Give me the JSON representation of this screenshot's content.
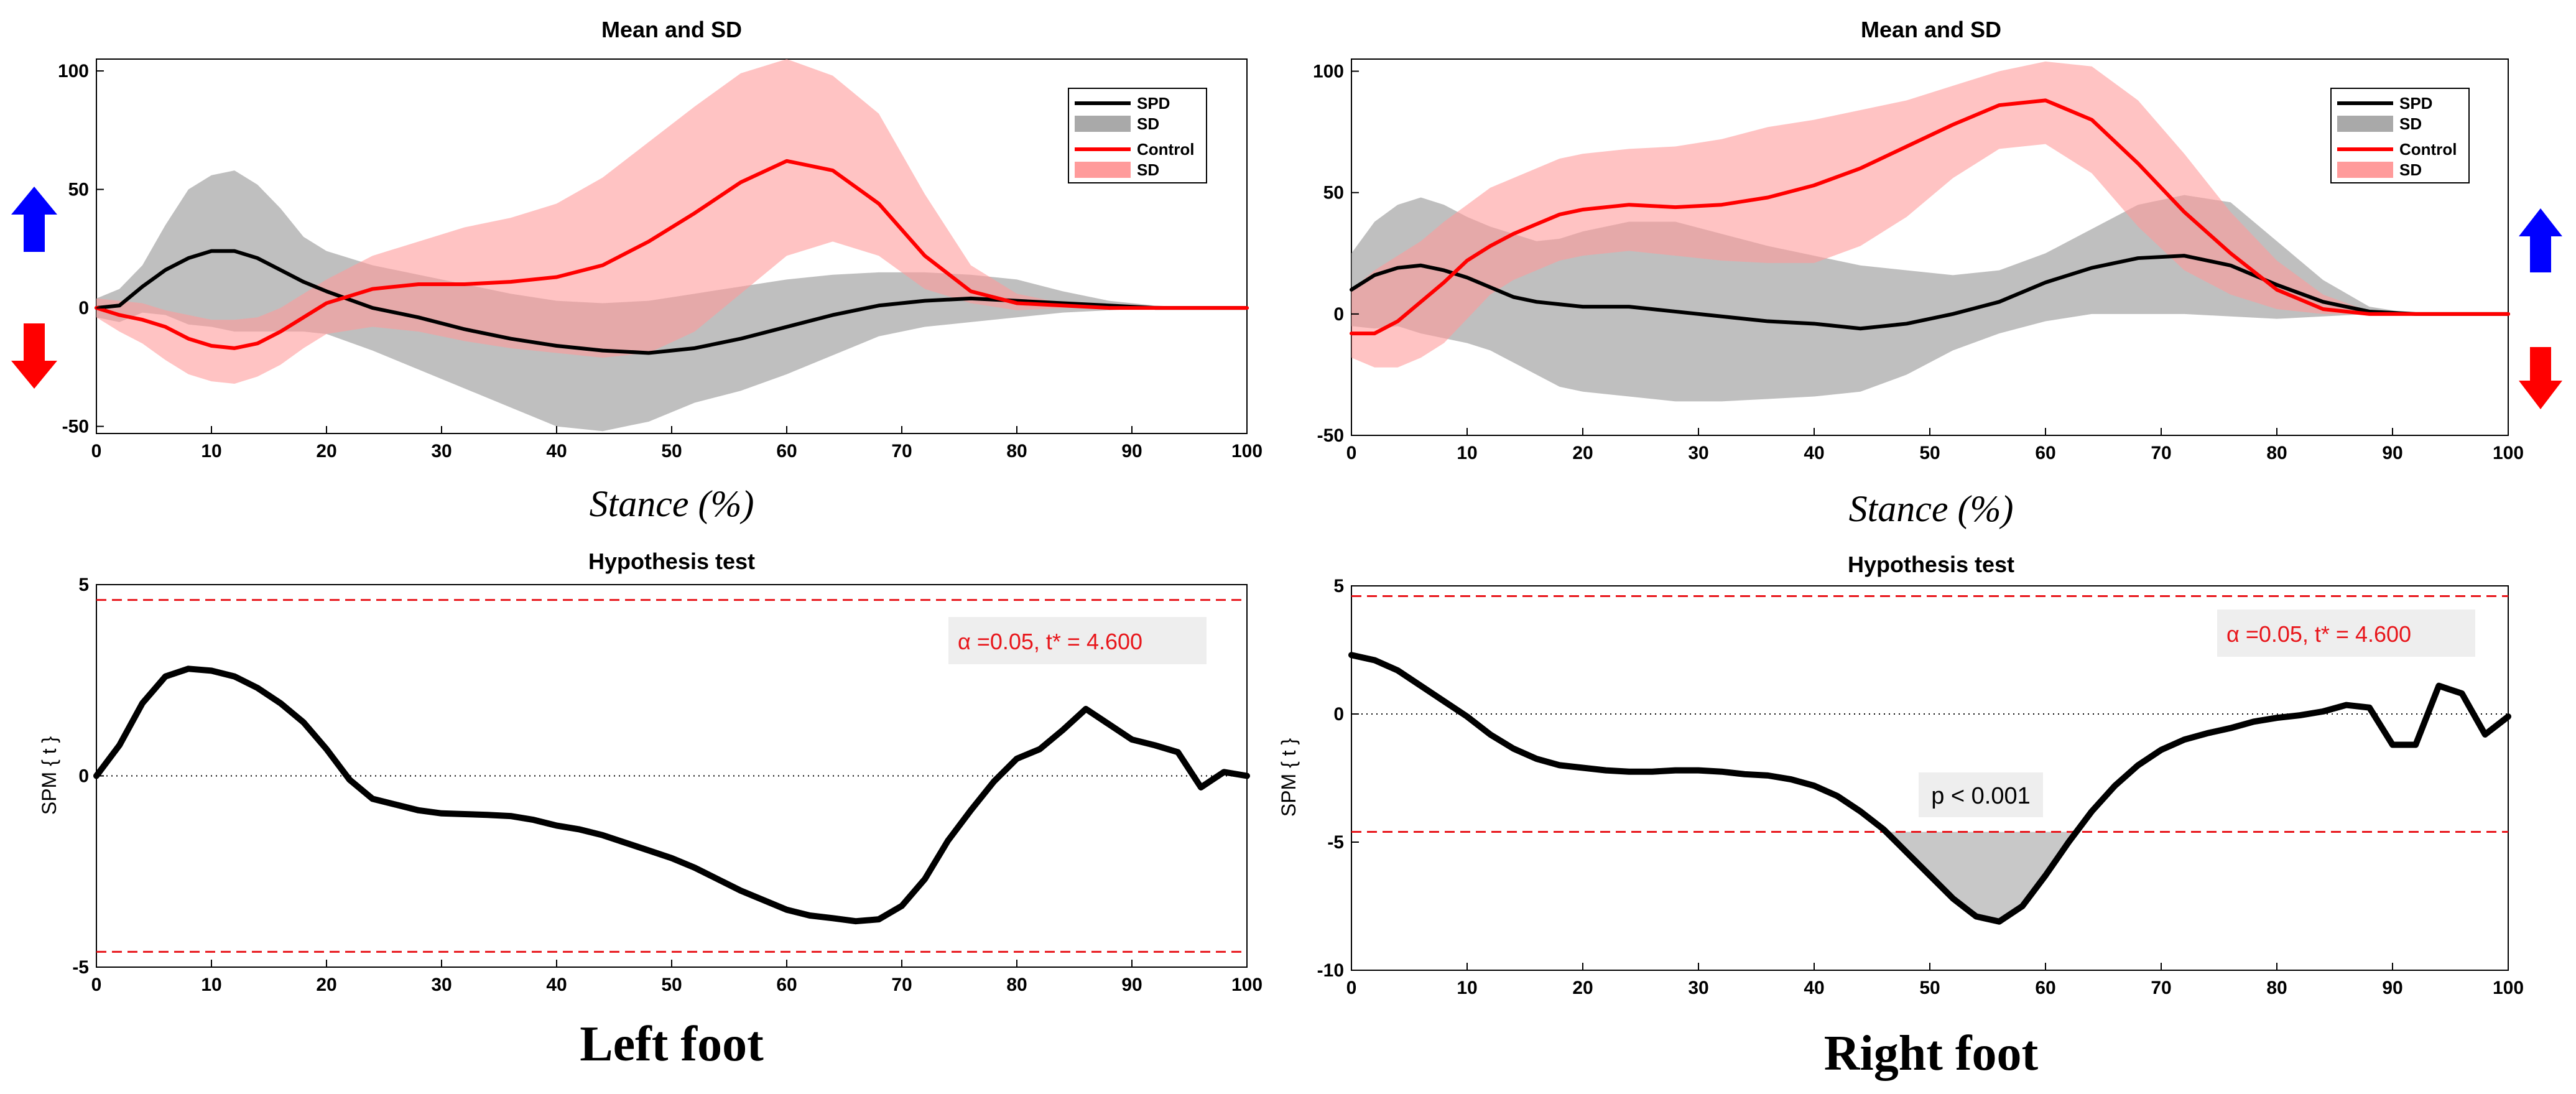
{
  "colors": {
    "spd_line": "#000000",
    "spd_band": "#a9a9a9",
    "control_line": "#ff0000",
    "control_band": "#ff9b9b",
    "threshold": "#e8161b",
    "cluster_fill": "#c8c8c8",
    "up_arrow": "#0000ff",
    "down_arrow": "#ff0000"
  },
  "icons": {
    "up": "blue-up-arrow-icon",
    "down": "red-down-arrow-icon"
  },
  "labels": {
    "left_foot": "Left foot",
    "right_foot": "Right foot",
    "stance_xlabel": "Stance (%)",
    "spm_ylabel": "SPM { t }"
  },
  "chart_data": [
    {
      "id": "left-mean",
      "type": "line",
      "title": "Mean and SD",
      "xlabel": "Stance (%)",
      "ylabel": "",
      "xlim": [
        0,
        100
      ],
      "ylim": [
        -53,
        105
      ],
      "xticks": [
        0,
        10,
        20,
        30,
        40,
        50,
        60,
        70,
        80,
        90,
        100
      ],
      "yticks": [
        -50,
        0,
        50,
        100
      ],
      "legend": {
        "position": "top-right",
        "entries": [
          "SPD",
          "SD",
          "Control",
          "SD"
        ]
      },
      "series": [
        {
          "name": "SPD",
          "kind": "line",
          "x": [
            0,
            2,
            4,
            6,
            8,
            10,
            12,
            14,
            16,
            18,
            20,
            24,
            28,
            32,
            36,
            40,
            44,
            48,
            52,
            56,
            60,
            64,
            68,
            72,
            76,
            80,
            84,
            88,
            92,
            96,
            100
          ],
          "y": [
            0,
            1,
            9,
            16,
            21,
            24,
            24,
            21,
            16,
            11,
            7,
            0,
            -4,
            -9,
            -13,
            -16,
            -18,
            -19,
            -17,
            -13,
            -8,
            -3,
            1,
            3,
            4,
            3,
            2,
            1,
            0,
            0,
            0
          ]
        },
        {
          "name": "SD",
          "kind": "band",
          "x": [
            0,
            2,
            4,
            6,
            8,
            10,
            12,
            14,
            16,
            18,
            20,
            24,
            28,
            32,
            36,
            40,
            44,
            48,
            52,
            56,
            60,
            64,
            68,
            72,
            76,
            80,
            84,
            88,
            92,
            96,
            100
          ],
          "upper": [
            4,
            8,
            18,
            35,
            50,
            56,
            58,
            52,
            42,
            30,
            24,
            18,
            14,
            10,
            6,
            3,
            2,
            3,
            6,
            9,
            12,
            14,
            15,
            15,
            14,
            12,
            7,
            3,
            1,
            0,
            0
          ],
          "lower": [
            -4,
            -6,
            -2,
            -3,
            -7,
            -8,
            -10,
            -10,
            -10,
            -10,
            -11,
            -18,
            -26,
            -34,
            -42,
            -50,
            -52,
            -48,
            -40,
            -35,
            -28,
            -20,
            -12,
            -8,
            -6,
            -4,
            -2,
            -1,
            0,
            0,
            0
          ]
        },
        {
          "name": "Control",
          "kind": "line",
          "x": [
            0,
            2,
            4,
            6,
            8,
            10,
            12,
            14,
            16,
            18,
            20,
            24,
            28,
            32,
            36,
            40,
            44,
            48,
            52,
            56,
            60,
            64,
            68,
            72,
            76,
            80,
            84,
            88,
            92,
            96,
            100
          ],
          "y": [
            0,
            -3,
            -5,
            -8,
            -13,
            -16,
            -17,
            -15,
            -10,
            -4,
            2,
            8,
            10,
            10,
            11,
            13,
            18,
            28,
            40,
            53,
            62,
            58,
            44,
            22,
            7,
            2,
            1,
            0,
            0,
            0,
            0
          ]
        },
        {
          "name": "SD",
          "kind": "band",
          "x": [
            0,
            2,
            4,
            6,
            8,
            10,
            12,
            14,
            16,
            18,
            20,
            24,
            28,
            32,
            36,
            40,
            44,
            48,
            52,
            56,
            60,
            64,
            68,
            72,
            76,
            80,
            84,
            88,
            92,
            96,
            100
          ],
          "upper": [
            4,
            3,
            2,
            -1,
            -3,
            -5,
            -5,
            -4,
            0,
            6,
            12,
            22,
            28,
            34,
            38,
            44,
            55,
            70,
            85,
            99,
            105,
            98,
            82,
            48,
            18,
            6,
            2,
            0,
            0,
            0,
            0
          ],
          "lower": [
            -4,
            -10,
            -15,
            -22,
            -28,
            -31,
            -32,
            -29,
            -24,
            -17,
            -11,
            -8,
            -10,
            -14,
            -17,
            -19,
            -21,
            -19,
            -10,
            6,
            22,
            28,
            22,
            8,
            2,
            -1,
            0,
            0,
            0,
            0,
            0
          ]
        }
      ]
    },
    {
      "id": "right-mean",
      "type": "line",
      "title": "Mean and SD",
      "xlabel": "Stance (%)",
      "ylabel": "",
      "xlim": [
        0,
        100
      ],
      "ylim": [
        -50,
        105
      ],
      "xticks": [
        0,
        10,
        20,
        30,
        40,
        50,
        60,
        70,
        80,
        90,
        100
      ],
      "yticks": [
        -50,
        0,
        50,
        100
      ],
      "legend": {
        "position": "top-right",
        "entries": [
          "SPD",
          "SD",
          "Control",
          "SD"
        ]
      },
      "series": [
        {
          "name": "SPD",
          "kind": "line",
          "x": [
            0,
            2,
            4,
            6,
            8,
            10,
            12,
            14,
            16,
            18,
            20,
            24,
            28,
            32,
            36,
            40,
            44,
            48,
            52,
            56,
            60,
            64,
            68,
            72,
            76,
            80,
            84,
            88,
            92,
            96,
            100
          ],
          "y": [
            10,
            16,
            19,
            20,
            18,
            15,
            11,
            7,
            5,
            4,
            3,
            3,
            1,
            -1,
            -3,
            -4,
            -6,
            -4,
            0,
            5,
            13,
            19,
            23,
            24,
            20,
            12,
            5,
            1,
            0,
            0,
            0
          ]
        },
        {
          "name": "SD",
          "kind": "band",
          "x": [
            0,
            2,
            4,
            6,
            8,
            10,
            12,
            14,
            16,
            18,
            20,
            24,
            28,
            32,
            36,
            40,
            44,
            48,
            52,
            56,
            60,
            64,
            68,
            72,
            76,
            80,
            84,
            88,
            92,
            96,
            100
          ],
          "upper": [
            25,
            38,
            45,
            48,
            45,
            40,
            36,
            33,
            30,
            31,
            34,
            38,
            38,
            33,
            28,
            24,
            20,
            18,
            16,
            18,
            25,
            35,
            45,
            49,
            46,
            30,
            14,
            3,
            0,
            0,
            0
          ],
          "lower": [
            -5,
            -6,
            -5,
            -8,
            -10,
            -12,
            -15,
            -20,
            -25,
            -30,
            -32,
            -34,
            -36,
            -36,
            -35,
            -34,
            -32,
            -25,
            -15,
            -8,
            -3,
            0,
            0,
            0,
            -1,
            -2,
            -1,
            0,
            0,
            0,
            0
          ]
        },
        {
          "name": "Control",
          "kind": "line",
          "x": [
            0,
            2,
            4,
            6,
            8,
            10,
            12,
            14,
            16,
            18,
            20,
            24,
            28,
            32,
            36,
            40,
            44,
            48,
            52,
            56,
            60,
            64,
            68,
            72,
            76,
            80,
            84,
            88,
            92,
            96,
            100
          ],
          "y": [
            -8,
            -8,
            -3,
            5,
            13,
            22,
            28,
            33,
            37,
            41,
            43,
            45,
            44,
            45,
            48,
            53,
            60,
            69,
            78,
            86,
            88,
            80,
            62,
            42,
            25,
            10,
            2,
            0,
            0,
            0,
            0
          ]
        },
        {
          "name": "SD",
          "kind": "band",
          "x": [
            0,
            2,
            4,
            6,
            8,
            10,
            12,
            14,
            16,
            18,
            20,
            24,
            28,
            32,
            36,
            40,
            44,
            48,
            52,
            56,
            60,
            64,
            68,
            72,
            76,
            80,
            84,
            88,
            92,
            96,
            100
          ],
          "upper": [
            10,
            18,
            24,
            30,
            38,
            45,
            52,
            56,
            60,
            64,
            66,
            68,
            69,
            72,
            77,
            80,
            84,
            88,
            94,
            100,
            104,
            102,
            88,
            66,
            42,
            22,
            8,
            1,
            0,
            0,
            0
          ],
          "lower": [
            -18,
            -22,
            -22,
            -18,
            -12,
            -2,
            8,
            14,
            18,
            22,
            24,
            26,
            24,
            22,
            21,
            21,
            28,
            40,
            56,
            68,
            70,
            58,
            36,
            18,
            8,
            2,
            0,
            0,
            0,
            0,
            0
          ]
        }
      ]
    },
    {
      "id": "left-spm",
      "type": "line",
      "title": "Hypothesis test",
      "xlabel": "",
      "ylabel": "SPM { t }",
      "xlim": [
        0,
        100
      ],
      "ylim": [
        -5,
        5
      ],
      "xticks": [
        0,
        10,
        20,
        30,
        40,
        50,
        60,
        70,
        80,
        90,
        100
      ],
      "yticks": [
        -5,
        0,
        5
      ],
      "threshold": 4.6,
      "annotation": "α  =0.05,     t* = 4.600",
      "series": [
        {
          "name": "SPM{t}",
          "kind": "line",
          "x": [
            0,
            2,
            4,
            6,
            8,
            10,
            12,
            14,
            16,
            18,
            20,
            22,
            24,
            26,
            28,
            30,
            32,
            34,
            36,
            38,
            40,
            42,
            44,
            46,
            48,
            50,
            52,
            54,
            56,
            58,
            60,
            62,
            64,
            66,
            68,
            70,
            72,
            74,
            76,
            78,
            80,
            82,
            84,
            86,
            88,
            90,
            92,
            94,
            96,
            98,
            100
          ],
          "y": [
            0,
            0.8,
            1.9,
            2.6,
            2.8,
            2.75,
            2.6,
            2.3,
            1.9,
            1.4,
            0.7,
            -0.1,
            -0.6,
            -0.75,
            -0.9,
            -0.98,
            -1.0,
            -1.02,
            -1.05,
            -1.15,
            -1.3,
            -1.4,
            -1.55,
            -1.75,
            -1.95,
            -2.15,
            -2.4,
            -2.7,
            -3.0,
            -3.25,
            -3.5,
            -3.65,
            -3.72,
            -3.8,
            -3.75,
            -3.4,
            -2.7,
            -1.7,
            -0.9,
            -0.15,
            0.45,
            0.7,
            1.2,
            1.75,
            1.35,
            0.95,
            0.8,
            0.62,
            -0.3,
            0.1,
            0
          ]
        }
      ]
    },
    {
      "id": "right-spm",
      "type": "line",
      "title": "Hypothesis test",
      "xlabel": "",
      "ylabel": "SPM { t }",
      "xlim": [
        0,
        100
      ],
      "ylim": [
        -10,
        5
      ],
      "xticks": [
        0,
        10,
        20,
        30,
        40,
        50,
        60,
        70,
        80,
        90,
        100
      ],
      "yticks": [
        -10,
        -5,
        0,
        5
      ],
      "threshold": 4.6,
      "annotation": "α  =0.05,     t* = 4.600",
      "cluster_label": "p < 0.001",
      "series": [
        {
          "name": "SPM{t}",
          "kind": "line",
          "x": [
            0,
            2,
            4,
            6,
            8,
            10,
            12,
            14,
            16,
            18,
            20,
            22,
            24,
            26,
            28,
            30,
            32,
            34,
            36,
            38,
            40,
            42,
            44,
            46,
            48,
            50,
            52,
            54,
            56,
            58,
            60,
            62,
            64,
            66,
            68,
            70,
            72,
            74,
            76,
            78,
            80,
            82,
            84,
            86,
            88,
            90,
            92,
            94,
            96,
            98,
            100
          ],
          "y": [
            2.3,
            2.1,
            1.7,
            1.1,
            0.5,
            -0.1,
            -0.8,
            -1.35,
            -1.75,
            -2.0,
            -2.1,
            -2.2,
            -2.25,
            -2.25,
            -2.2,
            -2.2,
            -2.25,
            -2.35,
            -2.4,
            -2.55,
            -2.8,
            -3.2,
            -3.8,
            -4.5,
            -5.4,
            -6.3,
            -7.2,
            -7.9,
            -8.1,
            -7.5,
            -6.3,
            -5.0,
            -3.8,
            -2.8,
            -2.0,
            -1.4,
            -1.0,
            -0.75,
            -0.55,
            -0.3,
            -0.15,
            -0.05,
            0.1,
            0.35,
            0.25,
            -1.2,
            -1.2,
            1.1,
            0.8,
            -0.8,
            -0.1
          ]
        }
      ]
    }
  ]
}
